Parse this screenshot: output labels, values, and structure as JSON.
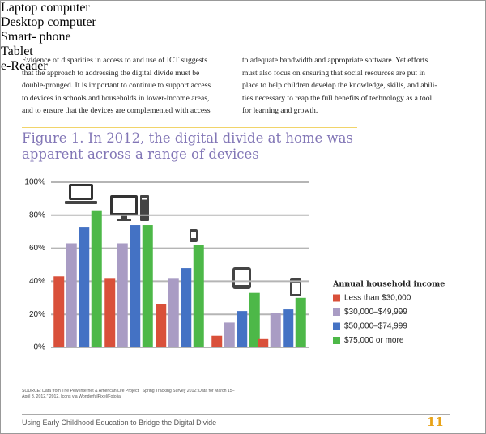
{
  "body_text": {
    "left_lines": [
      "Evidence of disparities in access to and use of ICT suggests",
      "that the approach to addressing the digital divide must be",
      "double-pronged. It is important to continue to support access",
      "to devices in schools and households in lower-income areas,",
      "and to ensure that the devices are complemented with access"
    ],
    "right_lines": [
      "to adequate bandwidth and appropriate software. Yet efforts",
      "must also focus on ensuring that social resources are put in",
      "place to help children develop the knowledge, skills, and abili-",
      "ties necessary to reap the full benefits of technology as a tool",
      "for learning and growth."
    ]
  },
  "chart_data": {
    "type": "bar",
    "title_lines": [
      "Figure 1. In 2012, the digital divide at home was",
      "apparent across a range of devices"
    ],
    "categories": [
      "Laptop\ncomputer",
      "Desktop\ncomputer",
      "Smart-\nphone",
      "Tablet",
      "e-Reader"
    ],
    "legend_title": "Annual household income",
    "series": [
      {
        "name": "Less than $30,000",
        "color": "#d9503a",
        "values": [
          43,
          42,
          26,
          7,
          5
        ]
      },
      {
        "name": "$30,000–$49,999",
        "color": "#a99cc4",
        "values": [
          63,
          63,
          42,
          15,
          21
        ]
      },
      {
        "name": "$50,000–$74,999",
        "color": "#4472c4",
        "values": [
          73,
          74,
          48,
          22,
          23
        ]
      },
      {
        "name": "$75,000 or more",
        "color": "#4db848",
        "values": [
          83,
          74,
          62,
          33,
          30
        ]
      }
    ],
    "ylim": [
      0,
      100
    ],
    "yticks": [
      {
        "value": 0,
        "label": "0%"
      },
      {
        "value": 20,
        "label": "20%"
      },
      {
        "value": 40,
        "label": "40%"
      },
      {
        "value": 60,
        "label": "60%"
      },
      {
        "value": 80,
        "label": "80%"
      },
      {
        "value": 100,
        "label": "100%"
      }
    ],
    "grid": true,
    "source_lines": [
      "SOURCE: Data from The Pew Internet & American Life Project, “Spring Tracking Survey 2012: Data for March 15–",
      "April 3, 2012,” 2012. Icons via WonderfulPixel/Fotolia."
    ]
  },
  "footer": {
    "title": "Using Early Childhood Education to Bridge the Digital Divide",
    "page_number": "11"
  }
}
